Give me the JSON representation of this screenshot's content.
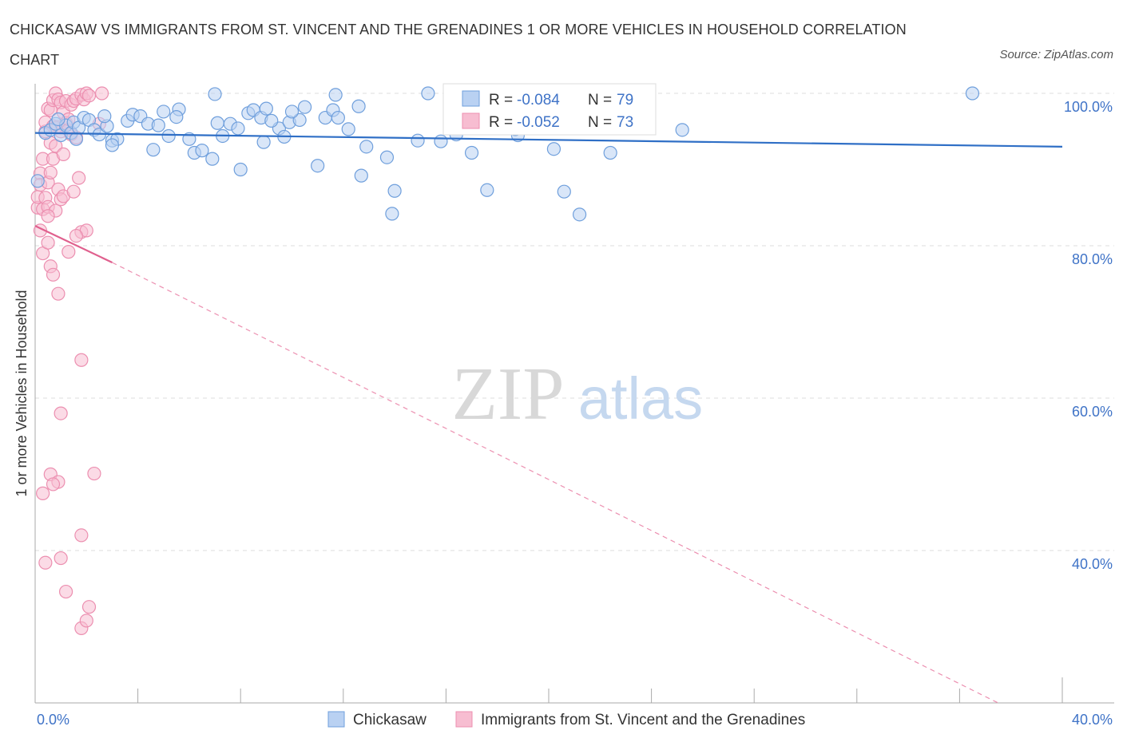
{
  "title": "CHICKASAW VS IMMIGRANTS FROM ST. VINCENT AND THE GRENADINES 1 OR MORE VEHICLES IN HOUSEHOLD CORRELATION CHART",
  "source": "Source: ZipAtlas.com",
  "watermark": {
    "zip": "ZIP",
    "atlas": "atlas"
  },
  "chart_data": {
    "type": "scatter",
    "ylabel": "1 or more Vehicles in Household",
    "xlim": [
      0,
      40
    ],
    "ylim": [
      20,
      100
    ],
    "x_ticks": [
      {
        "value": 0,
        "label": "0.0%"
      },
      {
        "value": 40,
        "label": "40.0%"
      }
    ],
    "y_ticks": [
      {
        "value": 100,
        "label": "100.0%"
      },
      {
        "value": 80,
        "label": "80.0%"
      },
      {
        "value": 60,
        "label": "60.0%"
      },
      {
        "value": 40,
        "label": "40.0%"
      }
    ],
    "grid": "dashed horizontal",
    "legend_position": "top-center",
    "series": [
      {
        "name": "Chickasaw",
        "color": "#6f9fdc",
        "fill": "#b9d1f2",
        "r_label": "R =",
        "r_value": "-0.084",
        "n_label": "N =",
        "n_value": "79",
        "trend": {
          "x0": 0,
          "y0": 94.8,
          "x1": 40,
          "y1": 93.0,
          "style": "solid"
        },
        "points": [
          [
            0.1,
            88.5
          ],
          [
            0.4,
            94.8
          ],
          [
            0.6,
            95.2
          ],
          [
            0.8,
            96.0
          ],
          [
            1.0,
            94.5
          ],
          [
            1.2,
            95.8
          ],
          [
            1.4,
            94.8
          ],
          [
            1.5,
            96.2
          ],
          [
            1.7,
            95.5
          ],
          [
            1.9,
            96.8
          ],
          [
            2.1,
            96.5
          ],
          [
            2.3,
            95.2
          ],
          [
            2.5,
            94.6
          ],
          [
            2.8,
            95.7
          ],
          [
            3.0,
            93.8
          ],
          [
            3.2,
            94.0
          ],
          [
            3.6,
            96.4
          ],
          [
            3.8,
            97.2
          ],
          [
            4.1,
            97.0
          ],
          [
            4.4,
            96.0
          ],
          [
            4.6,
            92.6
          ],
          [
            4.8,
            95.8
          ],
          [
            5.0,
            97.6
          ],
          [
            5.2,
            94.4
          ],
          [
            5.6,
            97.9
          ],
          [
            6.0,
            94.0
          ],
          [
            6.2,
            92.2
          ],
          [
            6.5,
            92.5
          ],
          [
            6.9,
            91.4
          ],
          [
            7.1,
            96.1
          ],
          [
            7.3,
            94.4
          ],
          [
            7.6,
            96.0
          ],
          [
            7.9,
            95.4
          ],
          [
            8.0,
            90.0
          ],
          [
            8.3,
            97.4
          ],
          [
            8.5,
            97.8
          ],
          [
            8.8,
            96.8
          ],
          [
            9.0,
            98.0
          ],
          [
            9.5,
            95.4
          ],
          [
            9.7,
            94.3
          ],
          [
            9.9,
            96.2
          ],
          [
            10.3,
            96.5
          ],
          [
            10.5,
            98.2
          ],
          [
            11.0,
            90.5
          ],
          [
            11.3,
            96.8
          ],
          [
            11.6,
            97.8
          ],
          [
            11.8,
            96.8
          ],
          [
            12.2,
            95.3
          ],
          [
            12.6,
            98.3
          ],
          [
            12.7,
            89.2
          ],
          [
            12.9,
            93.0
          ],
          [
            13.7,
            91.6
          ],
          [
            14.0,
            87.2
          ],
          [
            13.9,
            84.2
          ],
          [
            14.9,
            93.8
          ],
          [
            15.3,
            100.0
          ],
          [
            15.8,
            93.7
          ],
          [
            16.4,
            94.6
          ],
          [
            16.7,
            96.3
          ],
          [
            17.0,
            92.2
          ],
          [
            17.6,
            87.3
          ],
          [
            18.8,
            94.5
          ],
          [
            18.7,
            95.3
          ],
          [
            20.2,
            92.7
          ],
          [
            20.6,
            87.1
          ],
          [
            21.2,
            84.1
          ],
          [
            22.4,
            92.2
          ],
          [
            25.2,
            95.2
          ],
          [
            36.5,
            100.0
          ],
          [
            7.0,
            99.9
          ],
          [
            11.7,
            99.8
          ],
          [
            9.2,
            96.4
          ],
          [
            3.0,
            93.2
          ],
          [
            1.6,
            94.0
          ],
          [
            5.5,
            96.9
          ],
          [
            0.9,
            96.6
          ],
          [
            2.7,
            97.0
          ],
          [
            8.9,
            93.6
          ],
          [
            10.0,
            97.6
          ]
        ]
      },
      {
        "name": "Immigrants from St. Vincent and the Grenadines",
        "color": "#ec8fb0",
        "fill": "#f7bdd1",
        "r_label": "R =",
        "r_value": "-0.052",
        "n_label": "N =",
        "n_value": "73",
        "trend_solid": {
          "x0": 0,
          "y0": 82.6,
          "x1": 3.0,
          "y1": 77.8
        },
        "trend_dashed": {
          "x0": 3.0,
          "y0": 77.8,
          "x1": 37.5,
          "y1": 20.0
        },
        "points": [
          [
            0.1,
            85.0
          ],
          [
            0.1,
            86.4
          ],
          [
            0.2,
            89.5
          ],
          [
            0.2,
            88.0
          ],
          [
            0.3,
            91.4
          ],
          [
            0.3,
            84.8
          ],
          [
            0.3,
            79.0
          ],
          [
            0.4,
            95.0
          ],
          [
            0.4,
            96.2
          ],
          [
            0.4,
            86.3
          ],
          [
            0.5,
            98.0
          ],
          [
            0.5,
            88.3
          ],
          [
            0.5,
            85.1
          ],
          [
            0.5,
            80.4
          ],
          [
            0.6,
            97.8
          ],
          [
            0.6,
            93.5
          ],
          [
            0.6,
            89.6
          ],
          [
            0.6,
            77.3
          ],
          [
            0.7,
            99.1
          ],
          [
            0.7,
            95.7
          ],
          [
            0.7,
            91.4
          ],
          [
            0.7,
            76.2
          ],
          [
            0.8,
            100.0
          ],
          [
            0.8,
            93.1
          ],
          [
            0.8,
            84.6
          ],
          [
            0.9,
            99.2
          ],
          [
            0.9,
            95.6
          ],
          [
            0.9,
            87.4
          ],
          [
            0.9,
            73.7
          ],
          [
            1.0,
            98.8
          ],
          [
            1.0,
            95.0
          ],
          [
            1.0,
            86.1
          ],
          [
            1.1,
            97.5
          ],
          [
            1.1,
            92.0
          ],
          [
            1.1,
            86.5
          ],
          [
            1.2,
            99.0
          ],
          [
            1.2,
            96.1
          ],
          [
            1.3,
            95.2
          ],
          [
            1.3,
            79.2
          ],
          [
            1.4,
            98.5
          ],
          [
            1.4,
            94.6
          ],
          [
            1.5,
            99.0
          ],
          [
            1.5,
            87.1
          ],
          [
            1.6,
            99.3
          ],
          [
            1.6,
            94.2
          ],
          [
            1.7,
            88.9
          ],
          [
            1.8,
            99.8
          ],
          [
            1.8,
            81.8
          ],
          [
            1.9,
            99.2
          ],
          [
            2.0,
            100.0
          ],
          [
            2.0,
            82.0
          ],
          [
            2.1,
            99.7
          ],
          [
            2.5,
            96.0
          ],
          [
            2.6,
            100.0
          ],
          [
            1.8,
            65.0
          ],
          [
            0.6,
            50.0
          ],
          [
            0.9,
            49.0
          ],
          [
            1.8,
            42.0
          ],
          [
            1.0,
            39.0
          ],
          [
            0.4,
            38.4
          ],
          [
            1.0,
            58.0
          ],
          [
            0.3,
            47.5
          ],
          [
            0.7,
            48.7
          ],
          [
            1.8,
            29.8
          ],
          [
            2.0,
            30.8
          ],
          [
            2.1,
            32.6
          ],
          [
            1.2,
            34.6
          ],
          [
            2.3,
            50.1
          ],
          [
            1.6,
            81.3
          ],
          [
            0.2,
            82.0
          ],
          [
            0.5,
            83.9
          ],
          [
            1.3,
            96.6
          ],
          [
            0.8,
            95.5
          ]
        ]
      }
    ]
  }
}
